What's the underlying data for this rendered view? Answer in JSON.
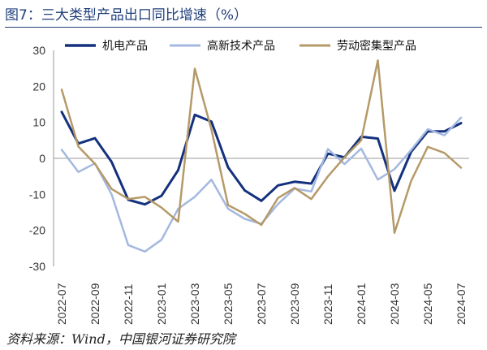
{
  "figure_title": "图7：三大类型产品出口同比增速（%）",
  "source": "资料来源：Wind，中国银河证券研究院",
  "chart_data": {
    "type": "line",
    "x": [
      "2022-07",
      "2022-08",
      "2022-09",
      "2022-10",
      "2022-11",
      "2022-12",
      "2023-01",
      "2023-02",
      "2023-03",
      "2023-04",
      "2023-05",
      "2023-06",
      "2023-07",
      "2023-08",
      "2023-09",
      "2023-10",
      "2023-11",
      "2023-12",
      "2024-01",
      "2024-02",
      "2024-03",
      "2024-04",
      "2024-05",
      "2024-06",
      "2024-07"
    ],
    "xticks": [
      "2022-07",
      "2022-09",
      "2022-11",
      "2023-01",
      "2023-03",
      "2023-05",
      "2023-07",
      "2023-09",
      "2023-11",
      "2024-01",
      "2024-03",
      "2024-05",
      "2024-07"
    ],
    "ylim": [
      -30,
      30
    ],
    "yticks": [
      30,
      20,
      10,
      0,
      -10,
      -20,
      -30
    ],
    "legend_position": "top",
    "series": [
      {
        "name": "机电产品",
        "color": "#14317e",
        "values": [
          12.9,
          4.1,
          5.6,
          -1,
          -11.5,
          -12.8,
          -10.4,
          -3.3,
          12.1,
          10.2,
          -2.5,
          -8.9,
          -11.8,
          -7.5,
          -6.5,
          -7.0,
          1.3,
          0.3,
          6.0,
          5.5,
          -9.0,
          1.8,
          7.5,
          7.5,
          9.8
        ]
      },
      {
        "name": "高新技术产品",
        "color": "#a4b8e0",
        "values": [
          2.4,
          -3.8,
          -1.4,
          -10,
          -24.1,
          -25.9,
          -22.6,
          -14.0,
          -10.7,
          -5.9,
          -14.0,
          -16.8,
          -18.2,
          -12.7,
          -8.4,
          -9.2,
          2.6,
          -1.6,
          2.7,
          -5.9,
          -3.0,
          2.3,
          8.1,
          6.4,
          11.3
        ]
      },
      {
        "name": "劳动密集型产品",
        "color": "#b59a68",
        "values": [
          19.1,
          3.3,
          -1.5,
          -8.5,
          -11.3,
          -10.7,
          -13.7,
          -17.6,
          24.9,
          8.0,
          -13.0,
          -15.4,
          -18.5,
          -11.0,
          -8.2,
          -11.3,
          -5.0,
          0.3,
          5.0,
          27.2,
          -20.7,
          -6.3,
          3.2,
          1.5,
          -2.6
        ]
      }
    ]
  }
}
